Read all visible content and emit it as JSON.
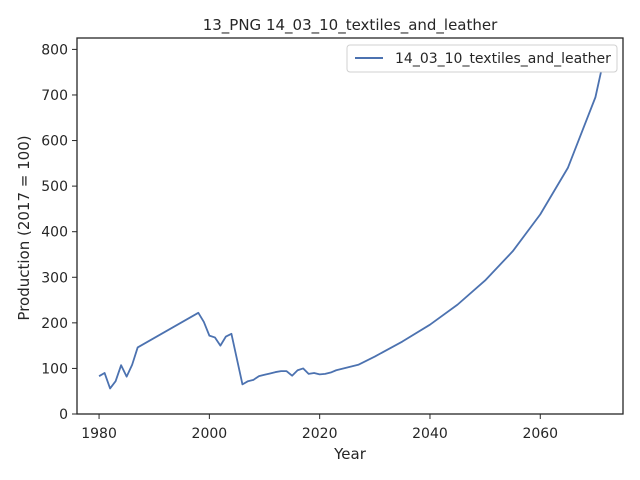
{
  "chart_data": {
    "type": "line",
    "title": "13_PNG 14_03_10_textiles_and_leather",
    "xlabel": "Year",
    "ylabel": "Production (2017 = 100)",
    "xlim": [
      1976,
      2075
    ],
    "ylim": [
      0,
      825
    ],
    "xticks": [
      1980,
      2000,
      2020,
      2040,
      2060
    ],
    "yticks": [
      0,
      100,
      200,
      300,
      400,
      500,
      600,
      700,
      800
    ],
    "grid": false,
    "legend": "top-right",
    "series": [
      {
        "name": "14_03_10_textiles_and_leather",
        "color": "#4c72b0",
        "x": [
          1980,
          1981,
          1982,
          1983,
          1984,
          1985,
          1986,
          1987,
          1998,
          1999,
          2000,
          2001,
          2002,
          2003,
          2004,
          2006,
          2007,
          2008,
          2009,
          2010,
          2011,
          2012,
          2013,
          2014,
          2015,
          2016,
          2017,
          2018,
          2019,
          2020,
          2021,
          2022,
          2023,
          2025,
          2027,
          2030,
          2035,
          2040,
          2045,
          2050,
          2055,
          2060,
          2065,
          2070,
          2071
        ],
        "y": [
          83,
          90,
          56,
          72,
          107,
          82,
          108,
          146,
          222,
          202,
          172,
          168,
          150,
          170,
          176,
          65,
          72,
          75,
          83,
          86,
          89,
          92,
          94,
          94,
          84,
          96,
          100,
          88,
          90,
          87,
          88,
          91,
          96,
          102,
          108,
          126,
          159,
          196,
          240,
          293,
          357,
          438,
          540,
          695,
          750
        ]
      }
    ]
  }
}
